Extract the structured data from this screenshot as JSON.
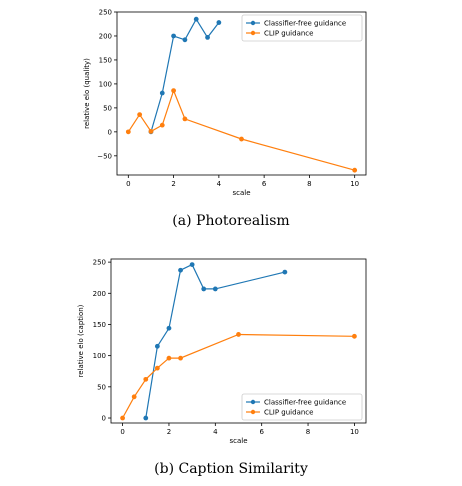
{
  "chart_data": [
    {
      "type": "line",
      "caption": "(a) Photorealism",
      "xlabel": "scale",
      "ylabel": "relative elo (quality)",
      "xlim": [
        -0.5,
        10.5
      ],
      "ylim": [
        -90,
        250
      ],
      "xticks": [
        0,
        2,
        4,
        6,
        8,
        10
      ],
      "yticks": [
        -50,
        0,
        50,
        100,
        150,
        200,
        250
      ],
      "legend_position": "top-right",
      "grid": false,
      "series": [
        {
          "name": "Classifier-free guidance",
          "color": "#1f77b4",
          "x": [
            1,
            1.5,
            2,
            2.5,
            3,
            3.5,
            4
          ],
          "y": [
            0,
            81,
            200,
            192,
            235,
            197,
            228
          ]
        },
        {
          "name": "CLIP guidance",
          "color": "#ff7f0e",
          "x": [
            0,
            0.5,
            1,
            1.5,
            2,
            2.5,
            5,
            10
          ],
          "y": [
            0,
            36,
            1,
            14,
            86,
            27,
            -15,
            -80
          ]
        }
      ]
    },
    {
      "type": "line",
      "caption": "(b) Caption Similarity",
      "xlabel": "scale",
      "ylabel": "relative elo (caption)",
      "xlim": [
        -0.5,
        10.5
      ],
      "ylim": [
        -8,
        255
      ],
      "xticks": [
        0,
        2,
        4,
        6,
        8,
        10
      ],
      "yticks": [
        0,
        50,
        100,
        150,
        200,
        250
      ],
      "legend_position": "bottom-right",
      "grid": false,
      "series": [
        {
          "name": "Classifier-free guidance",
          "color": "#1f77b4",
          "x": [
            1,
            1.5,
            2,
            2.5,
            3,
            3.5,
            4,
            7
          ],
          "y": [
            0,
            115,
            144,
            237,
            246,
            207,
            207,
            234
          ]
        },
        {
          "name": "CLIP guidance",
          "color": "#ff7f0e",
          "x": [
            0,
            0.5,
            1,
            1.5,
            2,
            2.5,
            5,
            10
          ],
          "y": [
            0,
            34,
            62,
            80,
            96,
            96,
            134,
            131
          ]
        }
      ]
    }
  ]
}
